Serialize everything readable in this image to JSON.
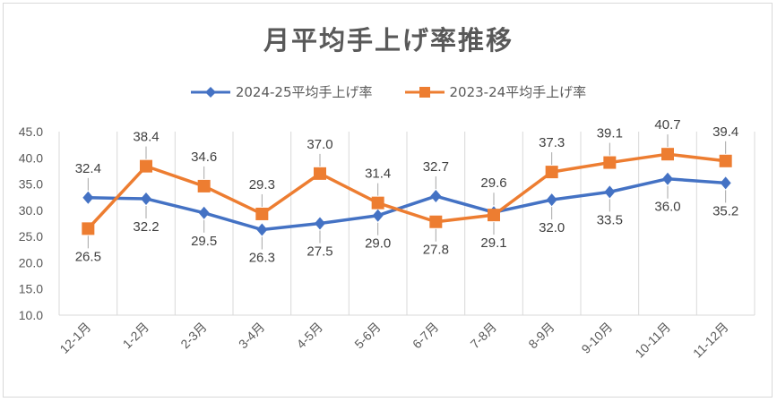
{
  "chart_data": {
    "type": "line",
    "title": "月平均手上げ率推移",
    "categories": [
      "12-1月",
      "1-2月",
      "2-3月",
      "3-4月",
      "4-5月",
      "5-6月",
      "6-7月",
      "7-8月",
      "8-9月",
      "9-10月",
      "10-11月",
      "11-12月"
    ],
    "series": [
      {
        "name": "2024-25平均手上げ率",
        "color": "#4472c4",
        "marker": "diamond",
        "values": [
          32.4,
          32.2,
          29.5,
          26.3,
          27.5,
          29.0,
          32.7,
          29.6,
          32.0,
          33.5,
          36.0,
          35.2
        ]
      },
      {
        "name": "2023-24平均手上げ率",
        "color": "#ed7d31",
        "marker": "square",
        "values": [
          26.5,
          38.4,
          34.6,
          29.3,
          37.0,
          31.4,
          27.8,
          29.1,
          37.3,
          39.1,
          40.7,
          39.4
        ]
      }
    ],
    "ylim": [
      10,
      45
    ],
    "yticks": [
      "10.0",
      "15.0",
      "20.0",
      "25.0",
      "30.0",
      "35.0",
      "40.0",
      "45.0"
    ],
    "xlabel": "",
    "ylabel": "",
    "grid": "vertical",
    "legend": "top-center"
  }
}
